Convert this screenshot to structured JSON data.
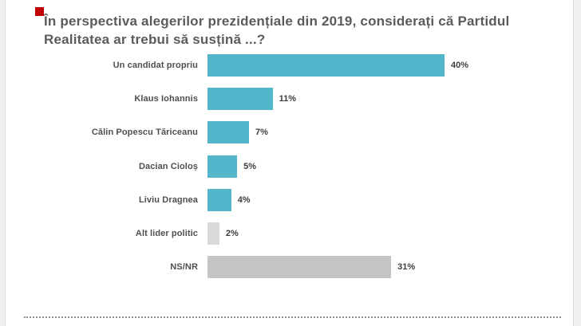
{
  "page": {
    "background_color": "#FFFFFF",
    "gutter_color": "#F0F0F0",
    "edge_line_color": "#DBDBDB",
    "footer_dotted_line_color": "#8F8F8F"
  },
  "title": {
    "text": "În perspectiva alegerilor prezidențiale din 2019, considerați că Partidul Realitatea ar trebui să susțină ...?",
    "color": "#5B5B5B",
    "marker_color": "#C00000"
  },
  "chart_data": {
    "type": "bar",
    "orientation": "horizontal",
    "title": "În perspectiva alegerilor prezidențiale din 2019, considerați că Partidul Realitatea ar trebui să susțină ...?",
    "categories": [
      "Un candidat propriu",
      "Klaus Iohannis",
      "Călin Popescu Tăriceanu",
      "Dacian Cioloș",
      "Liviu Dragnea",
      "Alt lider politic",
      "NS/NR"
    ],
    "values": [
      40,
      11,
      7,
      5,
      4,
      2,
      31
    ],
    "value_labels": [
      "40%",
      "11%",
      "7%",
      "5%",
      "4%",
      "2%",
      "31%"
    ],
    "bar_colors": [
      "#52B7CB",
      "#52B7CB",
      "#52B7CB",
      "#52B7CB",
      "#52B7CB",
      "#D9D9D9",
      "#C4C4C4"
    ],
    "accent_color": "#52B7CB",
    "neutral_color": "#C4C4C4",
    "neutral_light_color": "#D9D9D9",
    "category_label_color": "#4F4F4F",
    "value_label_color": "#3D3D3D",
    "xlim": [
      0,
      40
    ],
    "grid": false,
    "legend": false,
    "value_label_position": "outside-right",
    "pixels_per_unit": 7.425
  }
}
